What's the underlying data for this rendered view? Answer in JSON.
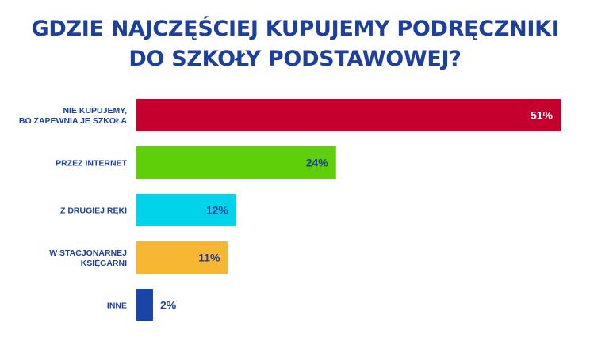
{
  "title": {
    "line1": "GDZIE NAJCZĘŚCIEJ KUPUJEMY PODRĘCZNIKI",
    "line2": "DO SZKOŁY PODSTAWOWEJ?"
  },
  "chart_data": {
    "type": "bar",
    "orientation": "horizontal",
    "title": "GDZIE NAJCZĘŚCIEJ KUPUJEMY PODRĘCZNIKI DO SZKOŁY PODSTAWOWEJ?",
    "categories": [
      [
        "NIE KUPUJEMY,",
        "BO ZAPEWNIA JE SZKOŁA"
      ],
      [
        "PRZEZ INTERNET"
      ],
      [
        "Z DRUGIEJ RĘKI"
      ],
      [
        "W STACJONARNEJ",
        "KSIĘGARNI"
      ],
      [
        "INNE"
      ]
    ],
    "values": [
      51,
      24,
      12,
      11,
      2
    ],
    "value_labels": [
      "51%",
      "24%",
      "12%",
      "11%",
      "2%"
    ],
    "colors": [
      "#c4002f",
      "#5fcf0a",
      "#00d3ea",
      "#f7b733",
      "#1a45a8"
    ],
    "value_label_colors": [
      "#ffffff",
      "#1d3f9e",
      "#1d3f9e",
      "#1d3f9e",
      "#1d3f9e"
    ],
    "xlim": [
      0,
      51
    ],
    "grid": false,
    "legend": "none"
  }
}
